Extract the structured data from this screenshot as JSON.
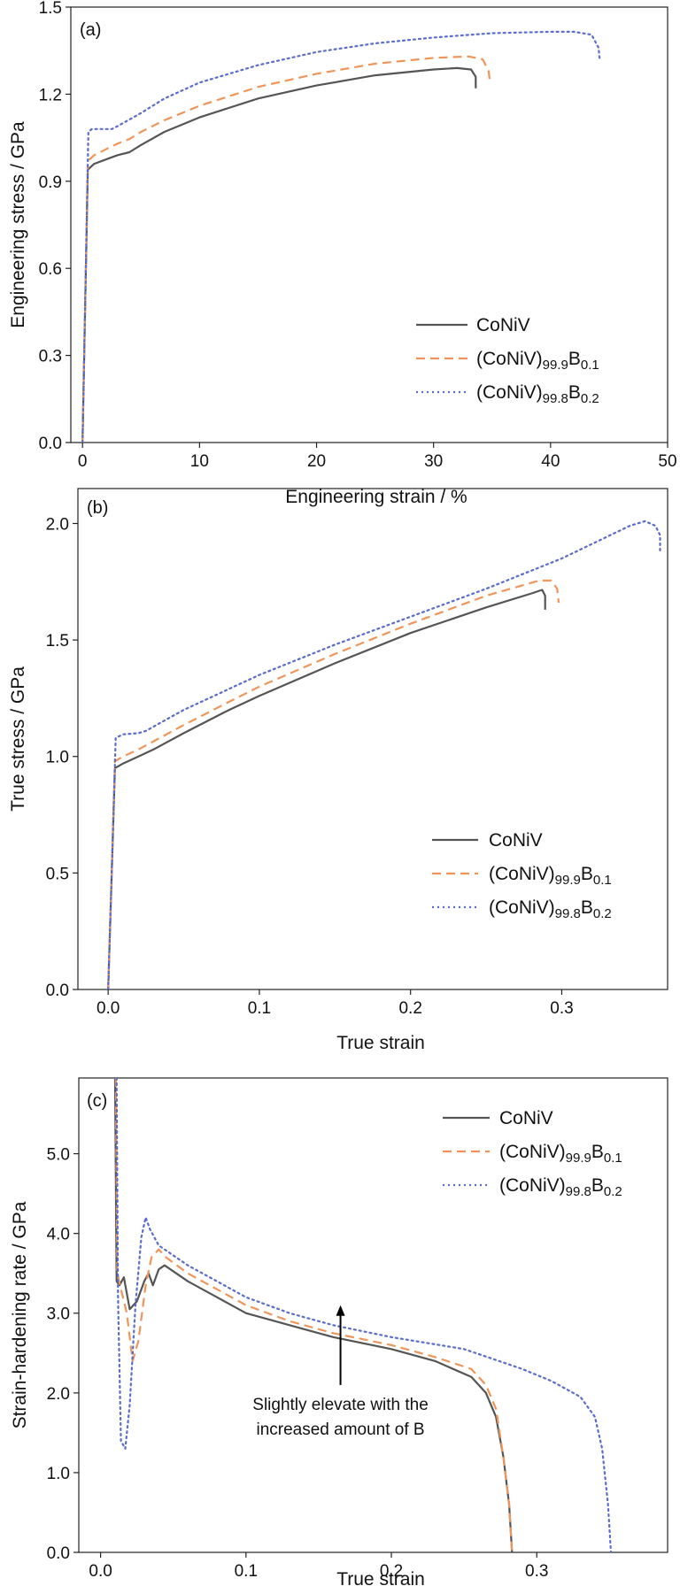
{
  "chart_data": [
    {
      "panel": "(a)",
      "type": "line",
      "xlabel": "Engineering strain / %",
      "ylabel": "Engineering stress / GPa",
      "xlim": [
        -1,
        50
      ],
      "ylim": [
        0,
        1.5
      ],
      "xticks": [
        "0",
        "10",
        "20",
        "30",
        "40",
        "50"
      ],
      "yticks": [
        "0.0",
        "0.3",
        "0.6",
        "0.9",
        "1.2",
        "1.5"
      ],
      "legend": "lower right",
      "series": [
        {
          "name": "CoNiV",
          "color": "#555555",
          "style": "solid",
          "x": [
            0,
            0.45,
            1,
            2,
            3,
            4,
            5,
            7,
            10,
            15,
            20,
            25,
            30,
            32,
            33.2,
            33.6,
            33.6
          ],
          "y": [
            0,
            0.94,
            0.96,
            0.975,
            0.99,
            1.0,
            1.025,
            1.07,
            1.12,
            1.185,
            1.23,
            1.265,
            1.285,
            1.29,
            1.285,
            1.26,
            1.22
          ]
        },
        {
          "name": "(CoNiV)99.9B0.1",
          "color": "#f0955a",
          "style": "dashed",
          "x": [
            0,
            0.45,
            1,
            2,
            3,
            4,
            5,
            7,
            10,
            15,
            20,
            25,
            30,
            33,
            34.2,
            34.7,
            34.8
          ],
          "y": [
            0,
            0.97,
            0.99,
            1.01,
            1.03,
            1.045,
            1.07,
            1.11,
            1.16,
            1.225,
            1.27,
            1.305,
            1.325,
            1.33,
            1.32,
            1.28,
            1.25
          ]
        },
        {
          "name": "(CoNiV)99.8B0.2",
          "color": "#5a6ccc",
          "style": "dotted",
          "x": [
            0,
            0.5,
            0.8,
            2.5,
            3,
            5,
            7,
            10,
            15,
            20,
            25,
            30,
            35,
            40,
            42,
            43.5,
            44.1,
            44.2
          ],
          "y": [
            0,
            1.07,
            1.08,
            1.08,
            1.09,
            1.135,
            1.185,
            1.24,
            1.3,
            1.345,
            1.375,
            1.395,
            1.41,
            1.415,
            1.415,
            1.405,
            1.36,
            1.32
          ]
        }
      ]
    },
    {
      "panel": "(b)",
      "type": "line",
      "xlabel": "True strain",
      "ylabel": "True stress / GPa",
      "xlim": [
        -0.02,
        0.37
      ],
      "ylim": [
        0,
        2.15
      ],
      "xticks": [
        "0.0",
        "0.1",
        "0.2",
        "0.3"
      ],
      "yticks": [
        "0.0",
        "0.5",
        "1.0",
        "1.5",
        "2.0"
      ],
      "legend": "lower right",
      "series": [
        {
          "name": "CoNiV",
          "color": "#555555",
          "style": "solid",
          "x": [
            0,
            0.0045,
            0.01,
            0.02,
            0.03,
            0.05,
            0.08,
            0.1,
            0.15,
            0.2,
            0.25,
            0.28,
            0.287,
            0.289,
            0.289
          ],
          "y": [
            0,
            0.95,
            0.97,
            1.0,
            1.03,
            1.1,
            1.2,
            1.26,
            1.4,
            1.53,
            1.64,
            1.7,
            1.715,
            1.69,
            1.63
          ]
        },
        {
          "name": "(CoNiV)99.9B0.1",
          "color": "#f0955a",
          "style": "dashed",
          "x": [
            0,
            0.0045,
            0.01,
            0.02,
            0.03,
            0.05,
            0.08,
            0.1,
            0.15,
            0.2,
            0.25,
            0.285,
            0.293,
            0.297,
            0.298
          ],
          "y": [
            0,
            0.98,
            1.0,
            1.03,
            1.065,
            1.135,
            1.235,
            1.3,
            1.44,
            1.57,
            1.69,
            1.755,
            1.755,
            1.72,
            1.66
          ]
        },
        {
          "name": "(CoNiV)99.8B0.2",
          "color": "#5a6ccc",
          "style": "dotted",
          "x": [
            0,
            0.005,
            0.01,
            0.02,
            0.025,
            0.05,
            0.1,
            0.15,
            0.2,
            0.25,
            0.3,
            0.345,
            0.355,
            0.362,
            0.365,
            0.365
          ],
          "y": [
            0,
            1.08,
            1.095,
            1.1,
            1.11,
            1.2,
            1.35,
            1.48,
            1.6,
            1.72,
            1.85,
            1.99,
            2.01,
            1.99,
            1.95,
            1.87
          ]
        }
      ]
    },
    {
      "panel": "(c)",
      "type": "line",
      "xlabel": "True strain",
      "ylabel": "Strain-hardening rate / GPa",
      "xlim": [
        -0.015,
        0.39
      ],
      "ylim": [
        0,
        5.95
      ],
      "xticks": [
        "0.0",
        "0.1",
        "0.2",
        "0.3"
      ],
      "yticks": [
        "0.0",
        "1.0",
        "2.0",
        "3.0",
        "4.0",
        "5.0"
      ],
      "legend": "upper right",
      "annotation": {
        "text": [
          "Slightly elevate with the",
          "increased amount of B"
        ],
        "arrow_x": 0.165,
        "arrow_from_y": 2.1,
        "arrow_to_y": 3.1
      },
      "series": [
        {
          "name": "CoNiV",
          "color": "#555555",
          "style": "solid",
          "x": [
            0.01,
            0.011,
            0.013,
            0.016,
            0.02,
            0.025,
            0.03,
            0.033,
            0.036,
            0.04,
            0.044,
            0.06,
            0.08,
            0.1,
            0.13,
            0.16,
            0.2,
            0.23,
            0.255,
            0.265,
            0.272,
            0.277,
            0.281,
            0.283
          ],
          "y": [
            5.95,
            3.4,
            3.35,
            3.45,
            3.05,
            3.15,
            3.4,
            3.5,
            3.35,
            3.55,
            3.6,
            3.4,
            3.2,
            3.0,
            2.85,
            2.7,
            2.55,
            2.4,
            2.2,
            2.0,
            1.7,
            1.2,
            0.6,
            0.0
          ]
        },
        {
          "name": "(CoNiV)99.9B0.1",
          "color": "#f0955a",
          "style": "dashed",
          "x": [
            0.0105,
            0.0115,
            0.014,
            0.018,
            0.022,
            0.026,
            0.031,
            0.035,
            0.04,
            0.045,
            0.06,
            0.08,
            0.1,
            0.13,
            0.16,
            0.2,
            0.23,
            0.255,
            0.265,
            0.272,
            0.277,
            0.281,
            0.283
          ],
          "y": [
            5.95,
            3.5,
            3.3,
            3.0,
            2.4,
            2.65,
            3.35,
            3.7,
            3.8,
            3.7,
            3.5,
            3.3,
            3.1,
            2.9,
            2.75,
            2.6,
            2.45,
            2.3,
            2.1,
            1.8,
            1.2,
            0.6,
            0.0
          ]
        },
        {
          "name": "(CoNiV)99.8B0.2",
          "color": "#5a6ccc",
          "style": "dotted",
          "x": [
            0.011,
            0.012,
            0.014,
            0.017,
            0.02,
            0.024,
            0.028,
            0.031,
            0.034,
            0.04,
            0.06,
            0.08,
            0.1,
            0.13,
            0.16,
            0.2,
            0.25,
            0.29,
            0.31,
            0.33,
            0.34,
            0.345,
            0.349,
            0.351
          ],
          "y": [
            5.95,
            3.2,
            1.4,
            1.3,
            1.85,
            3.1,
            3.95,
            4.2,
            4.05,
            3.85,
            3.6,
            3.4,
            3.2,
            3.0,
            2.85,
            2.7,
            2.55,
            2.3,
            2.15,
            1.95,
            1.7,
            1.3,
            0.6,
            0.0
          ]
        }
      ]
    }
  ]
}
